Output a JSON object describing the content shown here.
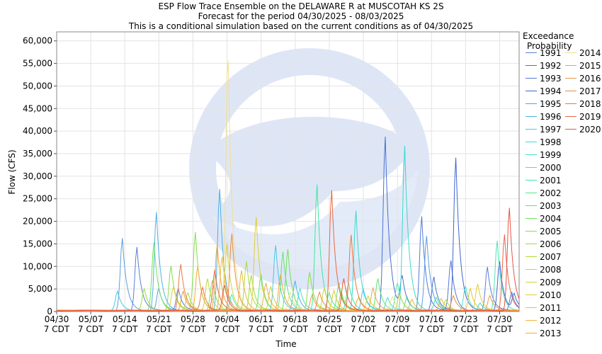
{
  "chart_data": {
    "type": "line",
    "title": "ESP Flow Trace Ensemble on the DELAWARE R at MUSCOTAH KS 2S",
    "subtitle_1": "Forecast for the period 04/30/2025 - 08/03/2025",
    "subtitle_2": "This is a conditional simulation based on the current conditions as of 04/30/2025",
    "xlabel": "Time",
    "ylabel": "Flow (CFS)",
    "ylim": [
      0,
      62000
    ],
    "x_range_days": [
      0,
      95
    ],
    "y_ticks": [
      0,
      5000,
      10000,
      15000,
      20000,
      25000,
      30000,
      35000,
      40000,
      45000,
      50000,
      55000,
      60000
    ],
    "y_tick_labels": [
      "0",
      "5,000",
      "10,000",
      "15,000",
      "20,000",
      "25,000",
      "30,000",
      "35,000",
      "40,000",
      "45,000",
      "50,000",
      "55,000",
      "60,000"
    ],
    "x_ticks": [
      {
        "line1": "04/30",
        "line2": "7 CDT"
      },
      {
        "line1": "05/07",
        "line2": "7 CDT"
      },
      {
        "line1": "05/14",
        "line2": "7 CDT"
      },
      {
        "line1": "05/21",
        "line2": "7 CDT"
      },
      {
        "line1": "05/28",
        "line2": "7 CDT"
      },
      {
        "line1": "06/04",
        "line2": "7 CDT"
      },
      {
        "line1": "06/11",
        "line2": "7 CDT"
      },
      {
        "line1": "06/18",
        "line2": "7 CDT"
      },
      {
        "line1": "06/25",
        "line2": "7 CDT"
      },
      {
        "line1": "07/02",
        "line2": "7 CDT"
      },
      {
        "line1": "07/09",
        "line2": "7 CDT"
      },
      {
        "line1": "07/16",
        "line2": "7 CDT"
      },
      {
        "line1": "07/23",
        "line2": "7 CDT"
      },
      {
        "line1": "07/30",
        "line2": "7 CDT"
      }
    ],
    "legend_title_1": "Exceedance",
    "legend_title_2": "Probability",
    "legend_placement": "right",
    "grid": true,
    "series": [
      {
        "name": "1991",
        "color": "#5b7fd6",
        "peaks": [
          [
            16.5,
            14200
          ],
          [
            25,
            5000
          ],
          [
            88.5,
            9800
          ]
        ]
      },
      {
        "name": "1992",
        "color": "#4a6fcf",
        "peaks": [
          [
            67.5,
            38700
          ],
          [
            71,
            7000
          ],
          [
            77.5,
            7600
          ]
        ]
      },
      {
        "name": "1993",
        "color": "#5579d4",
        "peaks": [
          [
            75,
            21000
          ],
          [
            81,
            11000
          ],
          [
            93.5,
            4200
          ]
        ]
      },
      {
        "name": "1994",
        "color": "#3e66cc",
        "peaks": [
          [
            82,
            34000
          ],
          [
            91,
            11000
          ],
          [
            94,
            3500
          ]
        ]
      },
      {
        "name": "1995",
        "color": "#5a9ee0",
        "peaks": [
          [
            13.5,
            16000
          ],
          [
            21,
            5000
          ],
          [
            76,
            16500
          ]
        ]
      },
      {
        "name": "1996",
        "color": "#4fb0e6",
        "peaks": [
          [
            20.5,
            21800
          ],
          [
            33.5,
            27000
          ],
          [
            49,
            6500
          ]
        ]
      },
      {
        "name": "1997",
        "color": "#47c6ea",
        "peaks": [
          [
            12.5,
            4200
          ],
          [
            45,
            14500
          ],
          [
            63,
            4800
          ]
        ]
      },
      {
        "name": "1998",
        "color": "#38d9cf",
        "peaks": [
          [
            61.5,
            22200
          ],
          [
            71.5,
            36500
          ],
          [
            87,
            1800
          ]
        ]
      },
      {
        "name": "1999",
        "color": "#44e0c8",
        "peaks": [
          [
            50,
            5000
          ],
          [
            68,
            3000
          ],
          [
            84,
            5500
          ]
        ]
      },
      {
        "name": "2000",
        "color": "#4ee3b4",
        "peaks": [
          [
            36,
            3500
          ],
          [
            70,
            6000
          ],
          [
            90.5,
            15500
          ]
        ]
      },
      {
        "name": "2001",
        "color": "#3ee6a0",
        "peaks": [
          [
            53.5,
            28000
          ],
          [
            60,
            6000
          ],
          [
            78,
            2800
          ]
        ]
      },
      {
        "name": "2002",
        "color": "#4ee884",
        "peaks": [
          [
            42,
            8000
          ],
          [
            56,
            4000
          ],
          [
            72,
            3200
          ]
        ]
      },
      {
        "name": "2003",
        "color": "#5ce670",
        "peaks": [
          [
            46.5,
            13000
          ],
          [
            58,
            6000
          ],
          [
            66,
            7000
          ]
        ]
      },
      {
        "name": "2004",
        "color": "#6ee35a",
        "peaks": [
          [
            20,
            15000
          ],
          [
            32,
            6800
          ],
          [
            47.5,
            13500
          ]
        ]
      },
      {
        "name": "2005",
        "color": "#84e048",
        "peaks": [
          [
            23.5,
            10000
          ],
          [
            28.5,
            17300
          ],
          [
            52,
            8500
          ]
        ]
      },
      {
        "name": "2006",
        "color": "#9add40",
        "peaks": [
          [
            18,
            4800
          ],
          [
            40,
            8000
          ],
          [
            58.5,
            4200
          ]
        ]
      },
      {
        "name": "2007",
        "color": "#b0da38",
        "peaks": [
          [
            27,
            4000
          ],
          [
            39,
            11000
          ],
          [
            80,
            2400
          ]
        ]
      },
      {
        "name": "2008",
        "color": "#c4d636",
        "peaks": [
          [
            31,
            7000
          ],
          [
            55,
            5000
          ],
          [
            70.5,
            3800
          ]
        ]
      },
      {
        "name": "2009",
        "color": "#d4d236",
        "peaks": [
          [
            35,
            15000
          ],
          [
            44,
            5500
          ],
          [
            64,
            3200
          ]
        ]
      },
      {
        "name": "2010",
        "color": "#e0cc38",
        "peaks": [
          [
            24,
            5400
          ],
          [
            41,
            20800
          ],
          [
            86.5,
            6000
          ]
        ]
      },
      {
        "name": "2011",
        "color": "#e8c23a",
        "peaks": [
          [
            34,
            12000
          ],
          [
            57,
            4500
          ],
          [
            85,
            5000
          ]
        ]
      },
      {
        "name": "2012",
        "color": "#ecb63c",
        "peaks": [
          [
            38,
            9000
          ],
          [
            62,
            2800
          ],
          [
            79,
            2600
          ]
        ]
      },
      {
        "name": "2013",
        "color": "#eeae3e",
        "peaks": [
          [
            29,
            10000
          ],
          [
            43,
            6000
          ],
          [
            73,
            2600
          ]
        ]
      },
      {
        "name": "2014",
        "color": "#f0e090",
        "peaks": [
          [
            35.2,
            58700
          ],
          [
            48,
            4000
          ],
          [
            69,
            3000
          ]
        ]
      },
      {
        "name": "2015",
        "color": "#eea440",
        "peaks": [
          [
            33,
            14800
          ],
          [
            46,
            8000
          ],
          [
            65,
            5000
          ]
        ]
      },
      {
        "name": "2016",
        "color": "#ee9840",
        "peaks": [
          [
            26,
            4400
          ],
          [
            52.5,
            3600
          ],
          [
            89,
            3400
          ]
        ]
      },
      {
        "name": "2017",
        "color": "#ec8c40",
        "peaks": [
          [
            36,
            17000
          ],
          [
            54,
            4000
          ],
          [
            81.5,
            3200
          ]
        ]
      },
      {
        "name": "2018",
        "color": "#ea7a42",
        "peaks": [
          [
            25.5,
            10200
          ],
          [
            30,
            5200
          ],
          [
            60.5,
            16800
          ]
        ]
      },
      {
        "name": "2019",
        "color": "#e86844",
        "peaks": [
          [
            32.5,
            9000
          ],
          [
            56.5,
            26800
          ],
          [
            92,
            17000
          ]
        ]
      },
      {
        "name": "2020",
        "color": "#e65446",
        "peaks": [
          [
            34.5,
            5600
          ],
          [
            59,
            7000
          ],
          [
            93,
            22800
          ]
        ]
      }
    ]
  }
}
